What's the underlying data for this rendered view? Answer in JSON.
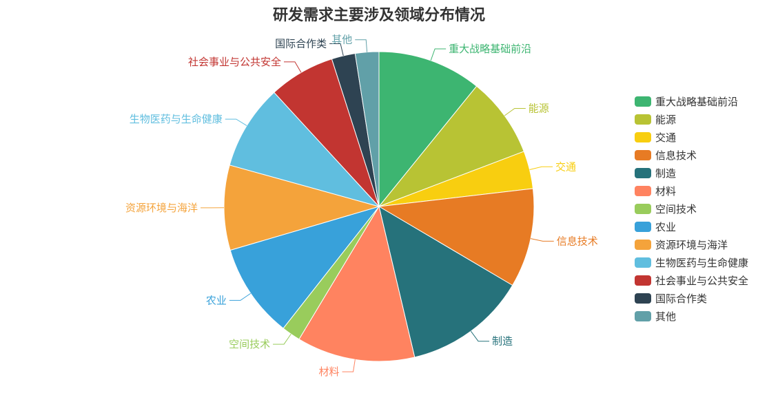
{
  "chart_data": {
    "type": "pie",
    "title": "研发需求主要涉及领域分布情况",
    "slices": [
      {
        "name": "重大战略基础前沿",
        "value": 11.0,
        "color": "#3db571"
      },
      {
        "name": "能源",
        "value": 8.5,
        "color": "#b8c334"
      },
      {
        "name": "交通",
        "value": 4.0,
        "color": "#f8ce10"
      },
      {
        "name": "信息技术",
        "value": 10.5,
        "color": "#e77b24"
      },
      {
        "name": "制造",
        "value": 13.0,
        "color": "#26727b"
      },
      {
        "name": "材料",
        "value": 12.5,
        "color": "#ff8360"
      },
      {
        "name": "空间技术",
        "value": 2.0,
        "color": "#99cc5c"
      },
      {
        "name": "农业",
        "value": 10.0,
        "color": "#38a1da"
      },
      {
        "name": "资源环境与海洋",
        "value": 9.0,
        "color": "#f4a33b"
      },
      {
        "name": "生物医药与生命健康",
        "value": 9.0,
        "color": "#60bedf"
      },
      {
        "name": "社会事业与公共安全",
        "value": 7.0,
        "color": "#c23531"
      },
      {
        "name": "国际合作类",
        "value": 2.5,
        "color": "#2e4352"
      },
      {
        "name": "其他",
        "value": 2.5,
        "color": "#61a0a8"
      }
    ],
    "legend_position": "right"
  }
}
